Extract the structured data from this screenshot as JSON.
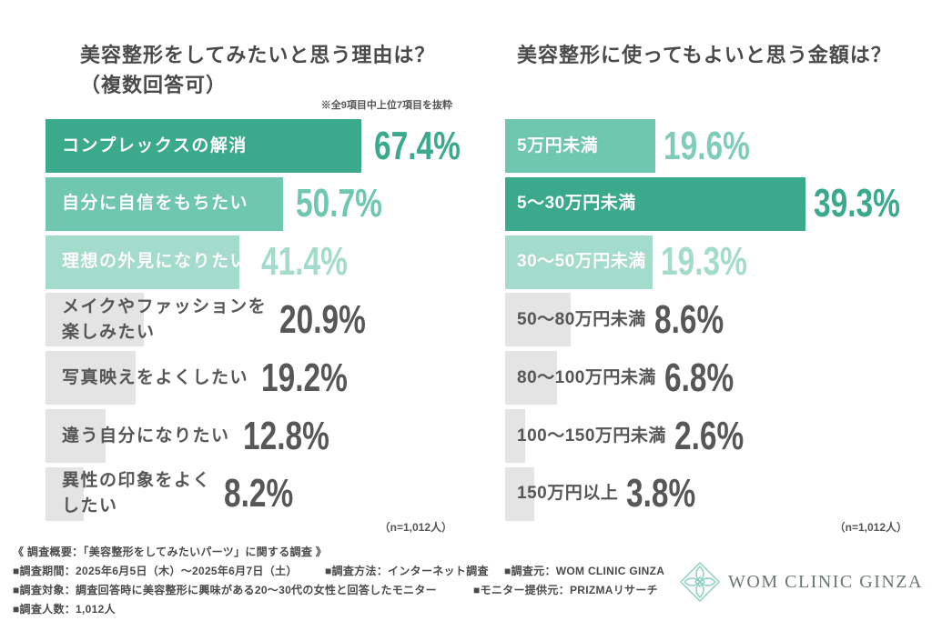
{
  "chart_data": [
    {
      "type": "bar",
      "orientation": "horizontal",
      "title": "美容整形をしてみたいと思う理由は？",
      "subtitle": "（複数回答可）",
      "note": "※全9項目中上位7項目を抜粋",
      "sample_size": "（n=1,012人）",
      "categories": [
        "コンプレックスの解消",
        "自分に自信をもちたい",
        "理想の外見になりたい",
        "メイクやファッションを\n楽しみたい",
        "写真映えをよくしたい",
        "違う自分になりたい",
        "異性の印象をよく\nしたい"
      ],
      "values": [
        67.4,
        50.7,
        41.4,
        20.9,
        19.2,
        12.8,
        8.2
      ],
      "value_labels": [
        "67.4%",
        "50.7%",
        "41.4%",
        "20.9%",
        "19.2%",
        "12.8%",
        "8.2%"
      ],
      "bar_colors": [
        "#3aa98c",
        "#6fc7af",
        "#a4dccb",
        "#e4e4e4",
        "#e4e4e4",
        "#e4e4e4",
        "#e4e4e4"
      ],
      "label_colors": [
        "#ffffff",
        "#ffffff",
        "#ffffff",
        "#575757",
        "#575757",
        "#575757",
        "#575757"
      ],
      "value_colors": [
        "#3aa98c",
        "#6fc7af",
        "#a4dccb",
        "#575757",
        "#575757",
        "#575757",
        "#575757"
      ]
    },
    {
      "type": "bar",
      "orientation": "horizontal",
      "title": "美容整形に使ってもよいと思う金額は？",
      "sample_size": "（n=1,012人）",
      "categories": [
        "5万円未満",
        "5〜30万円未満",
        "30〜50万円未満",
        "50〜80万円未満",
        "80〜100万円未満",
        "100〜150万円未満",
        "150万円以上"
      ],
      "values": [
        19.6,
        39.3,
        19.3,
        8.6,
        6.8,
        2.6,
        3.8
      ],
      "value_labels": [
        "19.6%",
        "39.3%",
        "19.3%",
        "8.6%",
        "6.8%",
        "2.6%",
        "3.8%"
      ],
      "bar_colors": [
        "#6fc7af",
        "#3aa98c",
        "#a4dccb",
        "#e4e4e4",
        "#e4e4e4",
        "#e4e4e4",
        "#e4e4e4"
      ],
      "label_colors": [
        "#ffffff",
        "#ffffff",
        "#ffffff",
        "#575757",
        "#575757",
        "#575757",
        "#575757"
      ],
      "value_colors": [
        "#7fcdb8",
        "#3aa98c",
        "#a4dccb",
        "#575757",
        "#575757",
        "#575757",
        "#575757"
      ]
    }
  ],
  "survey": {
    "heading": "《 調査概要：「美容整形をしてみたいパーツ」に関する調査 》",
    "period": "■調査期間：2025年6月5日（木）〜2025年6月7日（土）",
    "method": "■調査方法：インターネット調査",
    "source": "■調査元：WOM CLINIC GINZA",
    "target": "■調査対象：調査回答時に美容整形に興味がある20〜30代の女性と回答したモニター",
    "panel": "■モニター提供元：PRIZMAリサーチ",
    "respondents": "■調査人数：1,012人"
  },
  "logo": {
    "icon": "lotus-diamond-icon",
    "text": "WOM CLINIC GINZA",
    "icon_color": "#88cfbc"
  }
}
